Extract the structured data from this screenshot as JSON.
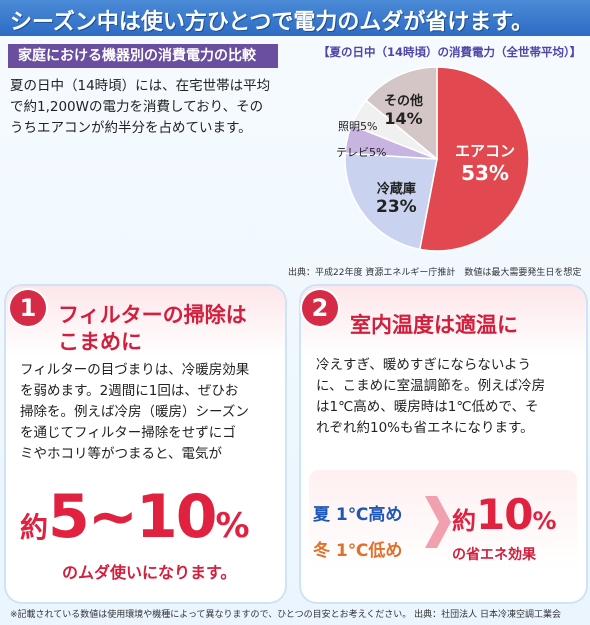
{
  "banner": {
    "title": "シーズン中は使い方ひとつで電力のムダが省けます。"
  },
  "section1": {
    "label": "家庭における機器別の消費電力の比較",
    "intro_lines": [
      "夏の日中（14時頃）には、在宅世帯は平均",
      "で約1,200Wの電力を消費しており、その",
      "うちエアコンが約半分を占めています。"
    ]
  },
  "chart_data": {
    "type": "pie",
    "title": "【夏の日中（14時頃）の消費電力（全世帯平均）】",
    "slices": [
      {
        "label": "エアコン",
        "value": 53,
        "value_text": "53%",
        "color": "#e1484f"
      },
      {
        "label": "冷蔵庫",
        "value": 23,
        "value_text": "23%",
        "color": "#c9d3ef"
      },
      {
        "label": "テレビ",
        "value": 5,
        "value_text": "テレビ5%",
        "color": "#c7b4e0"
      },
      {
        "label": "照明",
        "value": 5,
        "value_text": "照明5%",
        "color": "#f0f0f0"
      },
      {
        "label": "その他",
        "value": 14,
        "value_text": "14%",
        "color": "#d4c6c6"
      }
    ],
    "source": "出典：平成22年度 資源エネルギー庁推計　数値は最大需要発生日を想定"
  },
  "panel1": {
    "number": "1",
    "title_lines": [
      "フィルターの掃除は",
      "こまめに"
    ],
    "body_lines": [
      "フィルターの目づまりは、冷暖房効果",
      "を弱めます。2週間に1回は、ぜひお",
      "掃除を。例えば冷房（暖房）シーズン",
      "を通じてフィルター掃除をせずにゴ",
      "ミやホコリ等がつまると、電気が"
    ],
    "big_prefix": "約",
    "big_value": "5~10",
    "big_unit": "%",
    "caption": "のムダ使いになります。"
  },
  "panel2": {
    "number": "2",
    "title": "室内温度は適温に",
    "body_lines": [
      "冷えすぎ、暖めすぎにならないよう",
      "に、こまめに室温調節を。例えば冷房",
      "は1℃高め、暖房時は1℃低めで、そ",
      "れぞれ約10%も省エネになります。"
    ],
    "summer": "夏 1℃高め",
    "winter": "冬 1℃低め",
    "big_prefix": "約",
    "big_value": "10",
    "big_unit": "%",
    "caption": "の省エネ効果"
  },
  "footnote": "※記載されている数値は使用環境や機種によって異なりますので、ひとつの目安とお考えください。 出典：社団法人 日本冷凍空調工業会"
}
